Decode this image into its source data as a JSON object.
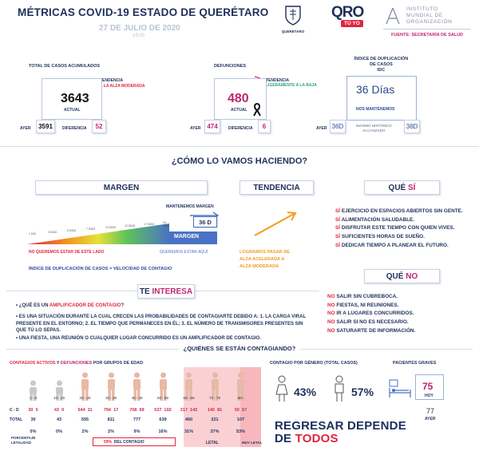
{
  "header": {
    "title": "MÉTRICAS COVID-19 ESTADO DE QUERÉTARO",
    "date": "27 DE JULIO DE 2020",
    "time": "19:00",
    "queretaro_label": "QUERÉTARO",
    "qro_logo_top": "QRO",
    "qro_logo_bottom": "TÚ YO",
    "institute_line1": "INSTITUTO",
    "institute_line2": "MUNDIAL DE",
    "institute_line3": "ORGANIZACIÓN",
    "source": "FUENTE: SECRETARÍA DE SALUD"
  },
  "total_cases": {
    "label": "TOTAL DE CASOS ACUMULADOS",
    "trend_label": "TENDENCIA",
    "trend_value": "A LA ALZA MODERADA",
    "value": "3643",
    "actual_label": "ACTUAL",
    "ayer_label": "AYER",
    "ayer_value": "3591",
    "diff_label": "DIFERENCIA",
    "diff_value": "52"
  },
  "deaths": {
    "label": "DEFUNCIONES",
    "trend_label": "TENDENCIA",
    "trend_value": "LIGERAMENTE A LA BAJA",
    "value": "480",
    "actual_label": "ACTUAL",
    "ayer_label": "AYER",
    "ayer_value": "474",
    "diff_label": "DIFERENCIA",
    "diff_value": "6"
  },
  "idc": {
    "label_line1": "ÍNDICE DE DUPLICACIÓN",
    "label_line2": "DE CASOS",
    "label_line3": "IDC",
    "value": "36 Días",
    "status": "NOS MANTENEMOS",
    "ayer_label": "AYER",
    "ayer_value": "36D",
    "max_label_line1": "MÁXIMO HISTÓRICO",
    "max_label_line2": "ALCANZADO",
    "max_value": "38D"
  },
  "section_how": "¿CÓMO LO VAMOS HACIENDO?",
  "margen": {
    "title": "MARGEN",
    "keep_label": "MANTENEMOS MARGEN",
    "current": "36 D",
    "bar_label": "MARGEN",
    "scale": [
      "1 DÍA",
      "3 DÍAS",
      "5 DÍAS",
      "7 DÍAS",
      "10 DÍAS",
      "12 DÍAS",
      "17 DÍAS",
      "20 DÍAS"
    ],
    "bad_label": "NO QUEREMOS ESTAR DE ESTE LADO",
    "good_label": "QUEREMOS ESTAR AQUÍ",
    "formula": "ÍNDICE DE DUPLICACIÓN DE CASOS = VELOCIDAD DE CONTAGIO"
  },
  "tendencia": {
    "title": "TENDENCIA",
    "text_line1": "LOGRAMOS PASAR DE",
    "text_line2": "ALZA ACELERADA A",
    "text_line3": "ALZA MODERADA"
  },
  "que_si": {
    "title_a": "QUÉ ",
    "title_b": "SÍ",
    "items": [
      {
        "a": "SÍ",
        "b": " EJERCICIO EN ESPACIOS ABIERTOS SIN GENTE."
      },
      {
        "a": "SÍ",
        "b": " ALIMENTACIÓN SALUDABLE."
      },
      {
        "a": "SÍ",
        "b": " DISFRUTAR ESTE TIEMPO CON QUIEN VIVES."
      },
      {
        "a": "SÍ",
        "b": " SUFICIENTES HORAS DE SUEÑO."
      },
      {
        "a": "SÍ",
        "b": " DEDICAR TIEMPO A PLANEAR EL FUTURO."
      }
    ]
  },
  "que_no": {
    "title_a": "QUÉ ",
    "title_b": "NO",
    "items": [
      {
        "a": "NO",
        "b": " SALIR SIN CUBREBOCA."
      },
      {
        "a": "NO",
        "b": " FIESTAS, NI REUNIONES."
      },
      {
        "a": "NO",
        "b": " IR A LUGARES CONCURRIDOS."
      },
      {
        "a": "NO",
        "b": " SALIR SI NO ES NECESARIO."
      },
      {
        "a": "NO",
        "b": " SATURARTE DE INFORMACIÓN."
      }
    ]
  },
  "te_interesa": {
    "title_a": "TE ",
    "title_b": "INTERESA",
    "q1_a": "¿QUÉ ES UN ",
    "q1_b": "AMPLIFICADOR DE CONTAGIO",
    "q1_c": "?",
    "p1": "ES UNA SITUACIÓN DURANTE LA CUAL CRECEN LAS PROBABILIDADES DE CONTAGIARTE DEBIDO A: 1. LA CARGA VIRAL PRESENTE EN EL ENTORNO; 2. EL TIEMPO QUE PERMANECES EN ÉL; 3. EL NÚMERO DE TRANSMISORES PRESENTES SIN QUE TÚ LO SEPAS.",
    "p2": "UNA FIESTA, UNA REUNIÓN O CUALQUIER LUGAR CONCURRIDO ES UN AMPLIFICADOR DE CONTAGIO."
  },
  "section_who": "¿QUIÉNES SE ESTÁN CONTAGIANDO?",
  "age_groups": {
    "title_a": "CONTAGIOS ACTIVOS",
    "title_b": " Y ",
    "title_c": "DEFUNCIONES",
    "title_d": " POR GRUPOS DE EDAD",
    "row_cd": "C - D",
    "row_total": "TOTAL",
    "row_pct_line1": "PORCENTAJE",
    "row_pct_line2": "LETALIDAD",
    "groups": [
      {
        "label": "1 - 9",
        "c": "30",
        "d": "0",
        "total": "30",
        "pct": "0%"
      },
      {
        "label": "10 - 19",
        "c": "43",
        "d": "0",
        "total": "43",
        "pct": "0%"
      },
      {
        "label": "20 - 29",
        "c": "544",
        "d": "11",
        "total": "555",
        "pct": "2%"
      },
      {
        "label": "30 - 39",
        "c": "794",
        "d": "17",
        "total": "811",
        "pct": "2%"
      },
      {
        "label": "40 - 49",
        "c": "708",
        "d": "69",
        "total": "777",
        "pct": "9%"
      },
      {
        "label": "50 - 59",
        "c": "537",
        "d": "102",
        "total": "639",
        "pct": "16%"
      },
      {
        "label": "60 - 69",
        "c": "317",
        "d": "143",
        "total": "460",
        "pct": "31%"
      },
      {
        "label": "70 - 79",
        "c": "140",
        "d": "81",
        "total": "221",
        "pct": "37%"
      },
      {
        "label": "80+",
        "c": "50",
        "d": "57",
        "total": "107",
        "pct": "53%"
      }
    ],
    "contagio_pct": "59%",
    "contagio_label": "DEL CONTAGIO",
    "letal": "LETAL",
    "muy_letal": "MUY LETAL"
  },
  "gender": {
    "title": "CONTAGIO POR GÉNERO (TOTAL CASOS)",
    "female": "43%",
    "male": "57%"
  },
  "graves": {
    "title": "PACIENTES GRAVES",
    "hoy_value": "75",
    "hoy_label": "HOY",
    "ayer_value": "77",
    "ayer_label": "AYER"
  },
  "slogan": {
    "line1_a": "REGRESAR DEPENDE",
    "line2_a": "DE ",
    "line2_b": "TODOS"
  },
  "colors": {
    "navy": "#1f2f5c",
    "red": "#e2253d",
    "magenta": "#c0266f",
    "orange": "#f29b1f",
    "blue": "#2a4d9c"
  }
}
